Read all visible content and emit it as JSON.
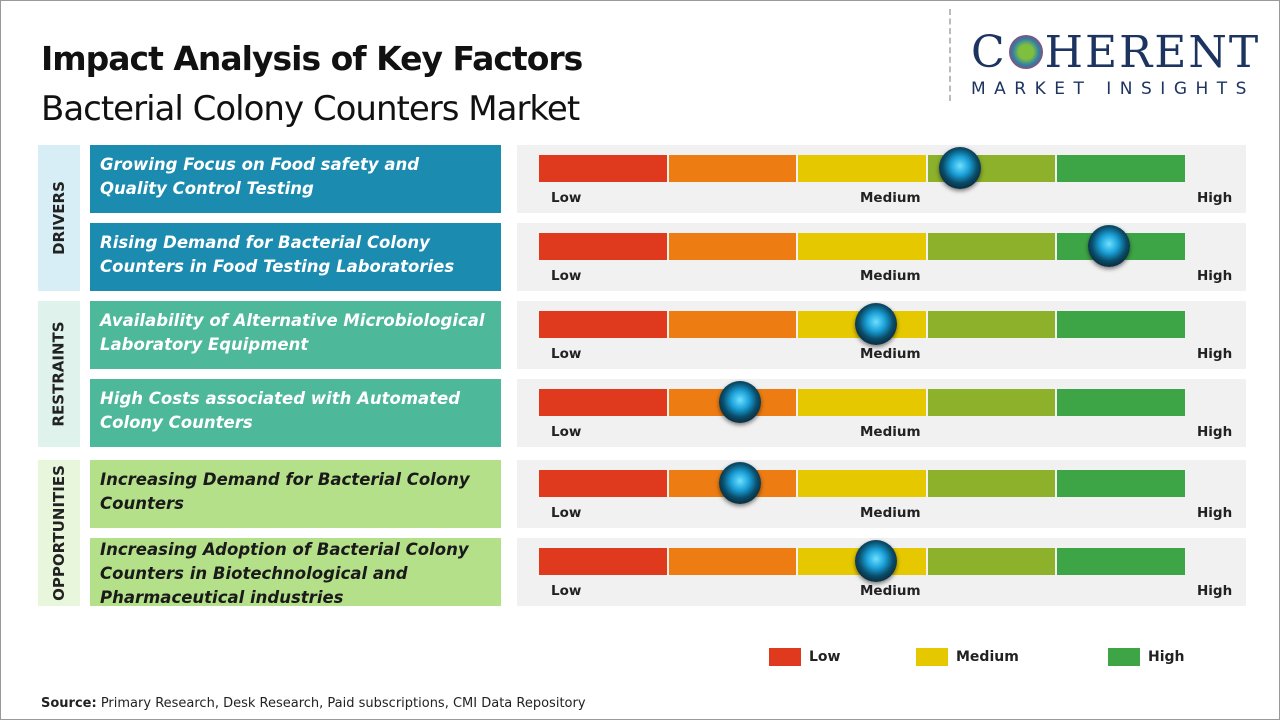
{
  "title": "Impact Analysis of Key Factors",
  "subtitle": "Bacterial Colony Counters Market",
  "logo": {
    "brand": "COHERENT",
    "tagline": "MARKET INSIGHTS"
  },
  "colors": {
    "low": "#e03a1e",
    "low_med": "#ed7d12",
    "medium": "#e6c800",
    "med_high": "#8db12b",
    "high": "#3ea546",
    "drivers": "#1b8bb0",
    "restraints": "#4db89a",
    "opportunities": "#b5e08a"
  },
  "categories": [
    {
      "label": "DRIVERS"
    },
    {
      "label": "RESTRAINTS"
    },
    {
      "label": "OPPORTUNITIES"
    }
  ],
  "chart_data": {
    "type": "gauge",
    "scale_labels": {
      "low": "Low",
      "medium": "Medium",
      "high": "High"
    },
    "range": [
      0,
      1
    ],
    "factors": [
      {
        "category": "DRIVERS",
        "text": "Growing Focus on Food safety and Quality Control Testing",
        "impact": 0.65
      },
      {
        "category": "DRIVERS",
        "text": "Rising Demand for Bacterial Colony Counters in Food Testing Laboratories",
        "impact": 0.88
      },
      {
        "category": "RESTRAINTS",
        "text": "Availability of Alternative Microbiological Laboratory Equipment",
        "impact": 0.52
      },
      {
        "category": "RESTRAINTS",
        "text": "High Costs associated with Automated Colony Counters",
        "impact": 0.31
      },
      {
        "category": "OPPORTUNITIES",
        "text": "Increasing Demand for Bacterial Colony Counters",
        "impact": 0.31
      },
      {
        "category": "OPPORTUNITIES",
        "text": "Increasing Adoption of Bacterial Colony Counters in Biotechnological and Pharmaceutical industries",
        "impact": 0.52
      }
    ],
    "legend": [
      "Low",
      "Medium",
      "High"
    ]
  },
  "source": {
    "label": "Source:",
    "text": " Primary Research, Desk Research, Paid subscriptions, CMI Data Repository"
  }
}
